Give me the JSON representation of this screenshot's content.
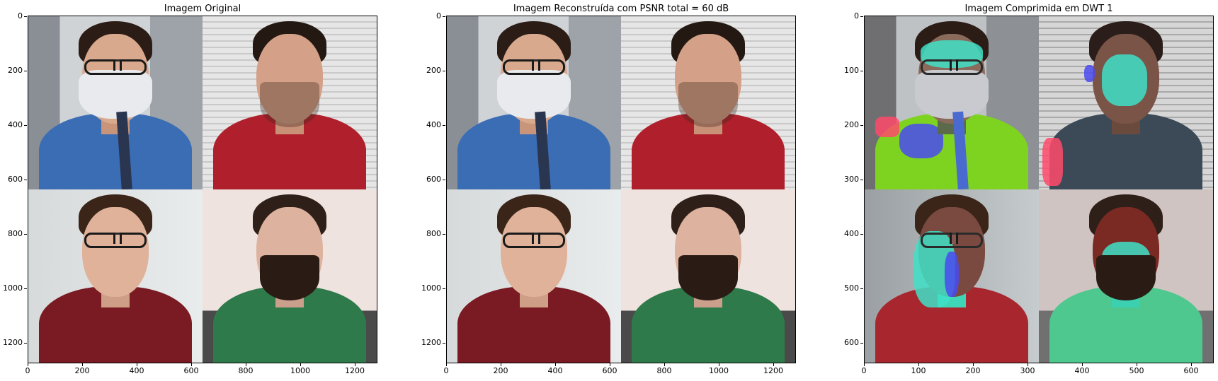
{
  "panels": [
    {
      "title": "Imagem Original",
      "y_ticks": [
        "0",
        "200",
        "400",
        "600",
        "800",
        "1000",
        "1200"
      ],
      "x_ticks": [
        "0",
        "200",
        "400",
        "600",
        "800",
        "1000",
        "1200"
      ]
    },
    {
      "title": "Imagem Reconstruída com PSNR total = 60 dB",
      "y_ticks": [
        "0",
        "200",
        "400",
        "600",
        "800",
        "1000",
        "1200"
      ],
      "x_ticks": [
        "0",
        "200",
        "400",
        "600",
        "800",
        "1000",
        "1200"
      ]
    },
    {
      "title": "Imagem Comprimida em DWT 1",
      "y_ticks": [
        "0",
        "100",
        "200",
        "300",
        "400",
        "500",
        "600"
      ],
      "x_ticks": [
        "0",
        "100",
        "200",
        "300",
        "400",
        "500",
        "600"
      ]
    }
  ],
  "colors": {
    "shirt_blue": "#3b6db5",
    "shirt_red": "#b0202c",
    "shirt_darkred": "#7a1a22",
    "shirt_green": "#2f7a4a",
    "skin": "#d9a98e",
    "hair": "#2b1d16"
  }
}
